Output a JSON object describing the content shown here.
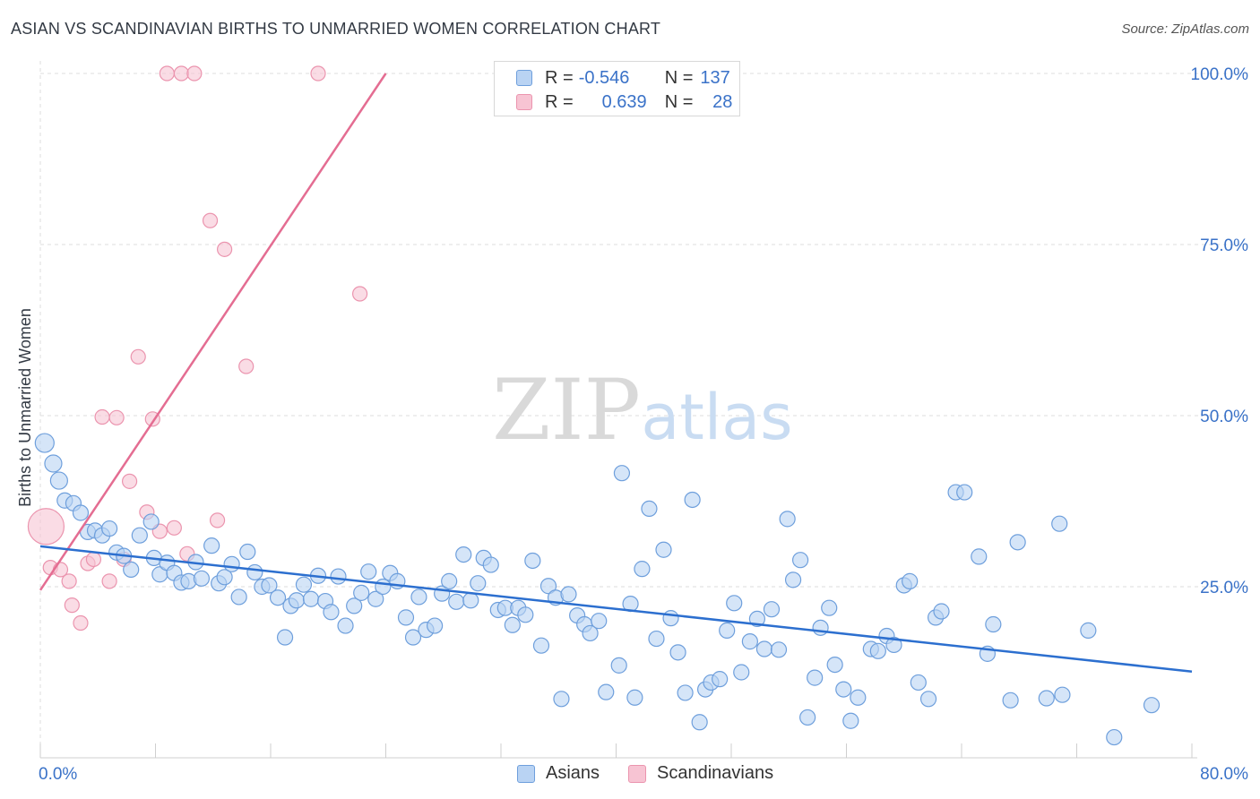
{
  "header": {
    "title": "ASIAN VS SCANDINAVIAN BIRTHS TO UNMARRIED WOMEN CORRELATION CHART",
    "source": "Source: ZipAtlas.com"
  },
  "watermark": {
    "zip": "ZIP",
    "atlas": "atlas"
  },
  "legend": {
    "asians": {
      "r_label": "R =",
      "r_value": "-0.546",
      "n_label": "N =",
      "n_value": "137"
    },
    "scandinavians": {
      "r_label": "R =",
      "r_value": "0.639",
      "n_label": "N =",
      "n_value": "28"
    }
  },
  "colors": {
    "asian_fill": "#b9d3f3",
    "asian_stroke": "#6e9fdc",
    "asian_line": "#2c6fcf",
    "scand_fill": "#f7c4d3",
    "scand_stroke": "#eb94ae",
    "scand_line": "#e46d92",
    "axis_text": "#3a72c8",
    "grid": "#dcdcdc"
  },
  "chart_data": {
    "type": "scatter",
    "title": "ASIAN VS SCANDINAVIAN BIRTHS TO UNMARRIED WOMEN CORRELATION CHART",
    "xlabel": "",
    "ylabel": "Births to Unmarried Women",
    "xlim": [
      0,
      80
    ],
    "ylim": [
      0,
      105
    ],
    "x_tick_labels": [
      "0.0%",
      "80.0%"
    ],
    "y_ticks": [
      25,
      50,
      75,
      100
    ],
    "y_tick_labels": [
      "25.0%",
      "50.0%",
      "75.0%",
      "100.0%"
    ],
    "legend_position": "top-center",
    "series": [
      {
        "name": "Asians",
        "trend": {
          "x": [
            0,
            80
          ],
          "y": [
            30.9,
            12.6
          ]
        },
        "points": [
          [
            0.3,
            46
          ],
          [
            0.9,
            43
          ],
          [
            1.3,
            40.5
          ],
          [
            1.7,
            37.6
          ],
          [
            2.3,
            37.2
          ],
          [
            2.8,
            35.8
          ],
          [
            3.3,
            33
          ],
          [
            3.8,
            33.2
          ],
          [
            4.3,
            32.5
          ],
          [
            4.8,
            33.5
          ],
          [
            5.3,
            30
          ],
          [
            5.8,
            29.5
          ],
          [
            6.3,
            27.5
          ],
          [
            6.9,
            32.5
          ],
          [
            7.7,
            34.5
          ],
          [
            7.9,
            29.2
          ],
          [
            8.3,
            26.8
          ],
          [
            8.8,
            28.5
          ],
          [
            9.3,
            27
          ],
          [
            9.8,
            25.6
          ],
          [
            10.3,
            25.8
          ],
          [
            10.8,
            28.6
          ],
          [
            11.2,
            26.2
          ],
          [
            11.9,
            31
          ],
          [
            12.4,
            25.5
          ],
          [
            12.8,
            26.4
          ],
          [
            13.3,
            28.3
          ],
          [
            13.8,
            23.5
          ],
          [
            14.4,
            30.1
          ],
          [
            14.9,
            27.1
          ],
          [
            15.4,
            25
          ],
          [
            15.9,
            25.2
          ],
          [
            16.5,
            23.4
          ],
          [
            17.0,
            17.6
          ],
          [
            17.4,
            22.2
          ],
          [
            17.8,
            23
          ],
          [
            18.3,
            25.3
          ],
          [
            18.8,
            23.2
          ],
          [
            19.3,
            26.6
          ],
          [
            19.8,
            22.9
          ],
          [
            20.2,
            21.3
          ],
          [
            20.7,
            26.5
          ],
          [
            21.2,
            19.3
          ],
          [
            21.8,
            22.2
          ],
          [
            22.3,
            24.1
          ],
          [
            22.8,
            27.2
          ],
          [
            23.3,
            23.2
          ],
          [
            23.8,
            25
          ],
          [
            24.3,
            27
          ],
          [
            24.8,
            25.8
          ],
          [
            25.4,
            20.5
          ],
          [
            25.9,
            17.6
          ],
          [
            26.3,
            23.5
          ],
          [
            26.8,
            18.7
          ],
          [
            27.4,
            19.3
          ],
          [
            27.9,
            24
          ],
          [
            28.4,
            25.8
          ],
          [
            28.9,
            22.8
          ],
          [
            29.4,
            29.7
          ],
          [
            29.9,
            23
          ],
          [
            30.4,
            25.5
          ],
          [
            30.8,
            29.2
          ],
          [
            31.3,
            28.2
          ],
          [
            31.8,
            21.6
          ],
          [
            32.3,
            21.9
          ],
          [
            32.8,
            19.4
          ],
          [
            33.2,
            21.9
          ],
          [
            33.7,
            20.9
          ],
          [
            34.2,
            28.8
          ],
          [
            34.8,
            16.4
          ],
          [
            35.3,
            25.1
          ],
          [
            35.8,
            23.4
          ],
          [
            36.2,
            8.6
          ],
          [
            36.7,
            23.9
          ],
          [
            37.3,
            20.8
          ],
          [
            37.8,
            19.5
          ],
          [
            38.2,
            18.2
          ],
          [
            38.8,
            20
          ],
          [
            39.3,
            9.6
          ],
          [
            40.2,
            13.5
          ],
          [
            40.4,
            41.6
          ],
          [
            41.0,
            22.5
          ],
          [
            41.3,
            8.8
          ],
          [
            41.8,
            27.6
          ],
          [
            42.3,
            36.4
          ],
          [
            42.8,
            17.4
          ],
          [
            43.3,
            30.4
          ],
          [
            43.8,
            20.4
          ],
          [
            44.3,
            15.4
          ],
          [
            44.8,
            9.5
          ],
          [
            45.3,
            37.7
          ],
          [
            45.8,
            5.2
          ],
          [
            46.2,
            10
          ],
          [
            46.6,
            11
          ],
          [
            47.2,
            11.5
          ],
          [
            47.7,
            18.6
          ],
          [
            48.2,
            22.6
          ],
          [
            48.7,
            12.5
          ],
          [
            49.3,
            17
          ],
          [
            49.8,
            20.3
          ],
          [
            50.3,
            15.9
          ],
          [
            50.8,
            21.7
          ],
          [
            51.3,
            15.8
          ],
          [
            51.9,
            34.9
          ],
          [
            52.3,
            26
          ],
          [
            52.8,
            28.9
          ],
          [
            53.3,
            5.9
          ],
          [
            53.8,
            11.7
          ],
          [
            54.2,
            19
          ],
          [
            54.8,
            21.9
          ],
          [
            55.2,
            13.6
          ],
          [
            55.8,
            10
          ],
          [
            56.3,
            5.4
          ],
          [
            56.8,
            8.8
          ],
          [
            57.7,
            15.9
          ],
          [
            58.2,
            15.6
          ],
          [
            58.8,
            17.8
          ],
          [
            59.3,
            16.5
          ],
          [
            60.0,
            25.2
          ],
          [
            60.4,
            25.8
          ],
          [
            61.0,
            11
          ],
          [
            61.7,
            8.6
          ],
          [
            62.2,
            20.5
          ],
          [
            62.6,
            21.4
          ],
          [
            63.6,
            38.8
          ],
          [
            64.2,
            38.8
          ],
          [
            65.2,
            29.4
          ],
          [
            65.8,
            15.2
          ],
          [
            66.2,
            19.5
          ],
          [
            67.4,
            8.4
          ],
          [
            67.9,
            31.5
          ],
          [
            69.9,
            8.7
          ],
          [
            70.8,
            34.2
          ],
          [
            71.0,
            9.2
          ],
          [
            72.8,
            18.6
          ],
          [
            74.6,
            3
          ],
          [
            77.2,
            7.7
          ]
        ]
      },
      {
        "name": "Scandinavians",
        "trend": {
          "x": [
            0,
            24
          ],
          "y": [
            24.5,
            100
          ]
        },
        "points": [
          [
            0.4,
            33.8
          ],
          [
            0.7,
            27.8
          ],
          [
            1.4,
            27.5
          ],
          [
            2.0,
            25.8
          ],
          [
            2.2,
            22.3
          ],
          [
            2.8,
            19.7
          ],
          [
            3.3,
            28.4
          ],
          [
            3.7,
            29
          ],
          [
            4.3,
            49.8
          ],
          [
            4.8,
            25.8
          ],
          [
            5.3,
            49.7
          ],
          [
            5.8,
            29
          ],
          [
            6.2,
            40.4
          ],
          [
            6.8,
            58.6
          ],
          [
            7.4,
            35.9
          ],
          [
            7.8,
            49.5
          ],
          [
            8.3,
            33.1
          ],
          [
            8.8,
            100
          ],
          [
            9.3,
            33.6
          ],
          [
            9.8,
            100
          ],
          [
            10.2,
            29.8
          ],
          [
            10.7,
            100
          ],
          [
            11.8,
            78.5
          ],
          [
            12.3,
            34.7
          ],
          [
            12.8,
            74.3
          ],
          [
            14.3,
            57.2
          ],
          [
            19.3,
            100
          ],
          [
            22.2,
            67.8
          ]
        ]
      }
    ]
  }
}
